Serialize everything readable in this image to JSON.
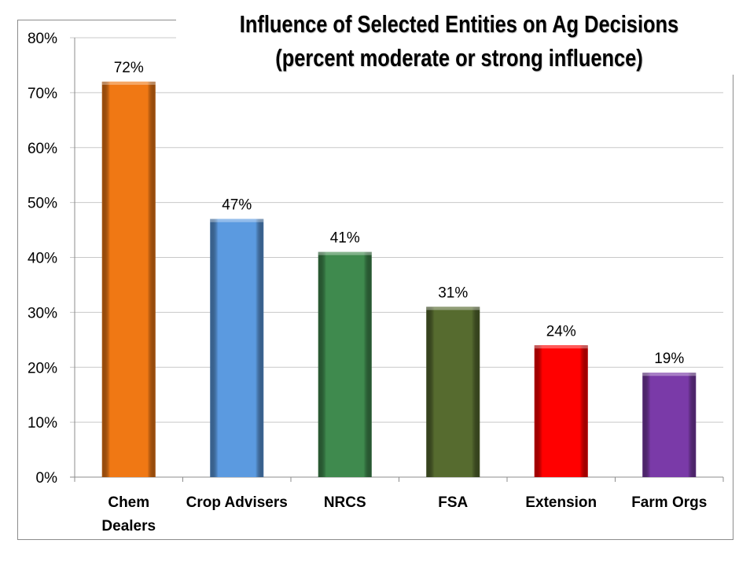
{
  "chart_data": {
    "type": "bar",
    "title": "Influence of Selected Entities on Ag Decisions",
    "subtitle": "(percent moderate or strong influence)",
    "categories": [
      [
        "Chem",
        "Dealers"
      ],
      [
        "Crop Advisers"
      ],
      [
        "NRCS"
      ],
      [
        "FSA"
      ],
      [
        "Extension"
      ],
      [
        "Farm Orgs"
      ]
    ],
    "values": [
      72,
      47,
      41,
      31,
      24,
      19
    ],
    "data_labels": [
      "72%",
      "47%",
      "41%",
      "31%",
      "24%",
      "19%"
    ],
    "colors": [
      "#f07814",
      "#5b9ae0",
      "#3f8a4e",
      "#566b2f",
      "#ff0000",
      "#7a3aa8"
    ],
    "ylim": [
      0,
      80
    ],
    "yticks": [
      "0%",
      "10%",
      "20%",
      "30%",
      "40%",
      "50%",
      "60%",
      "70%",
      "80%"
    ],
    "xlabel": "",
    "ylabel": "",
    "grid": true,
    "legend": "none"
  }
}
